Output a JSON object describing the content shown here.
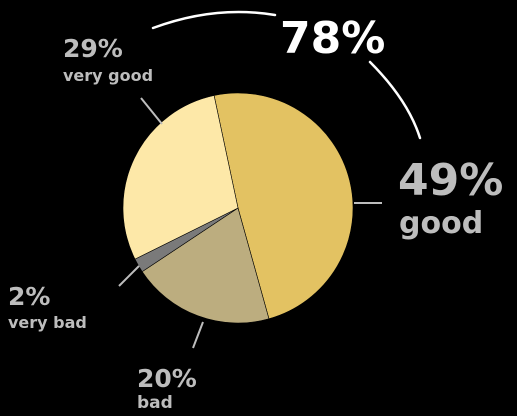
{
  "chart_data": {
    "type": "pie",
    "slices": [
      {
        "label": "good",
        "percent_label": "49%",
        "value": 49,
        "color": "#e3c262"
      },
      {
        "label": "bad",
        "percent_label": "20%",
        "value": 20,
        "color": "#bcad7f"
      },
      {
        "label": "very bad",
        "percent_label": "2%",
        "value": 2,
        "color": "#7a7a7a"
      },
      {
        "label": "very good",
        "percent_label": "29%",
        "value": 29,
        "color": "#fde8a8"
      }
    ],
    "total_label": "78%",
    "annotation_colors": {
      "label_color": "#bdbdbd",
      "total_color": "#ffffff",
      "background": "#000000"
    }
  }
}
